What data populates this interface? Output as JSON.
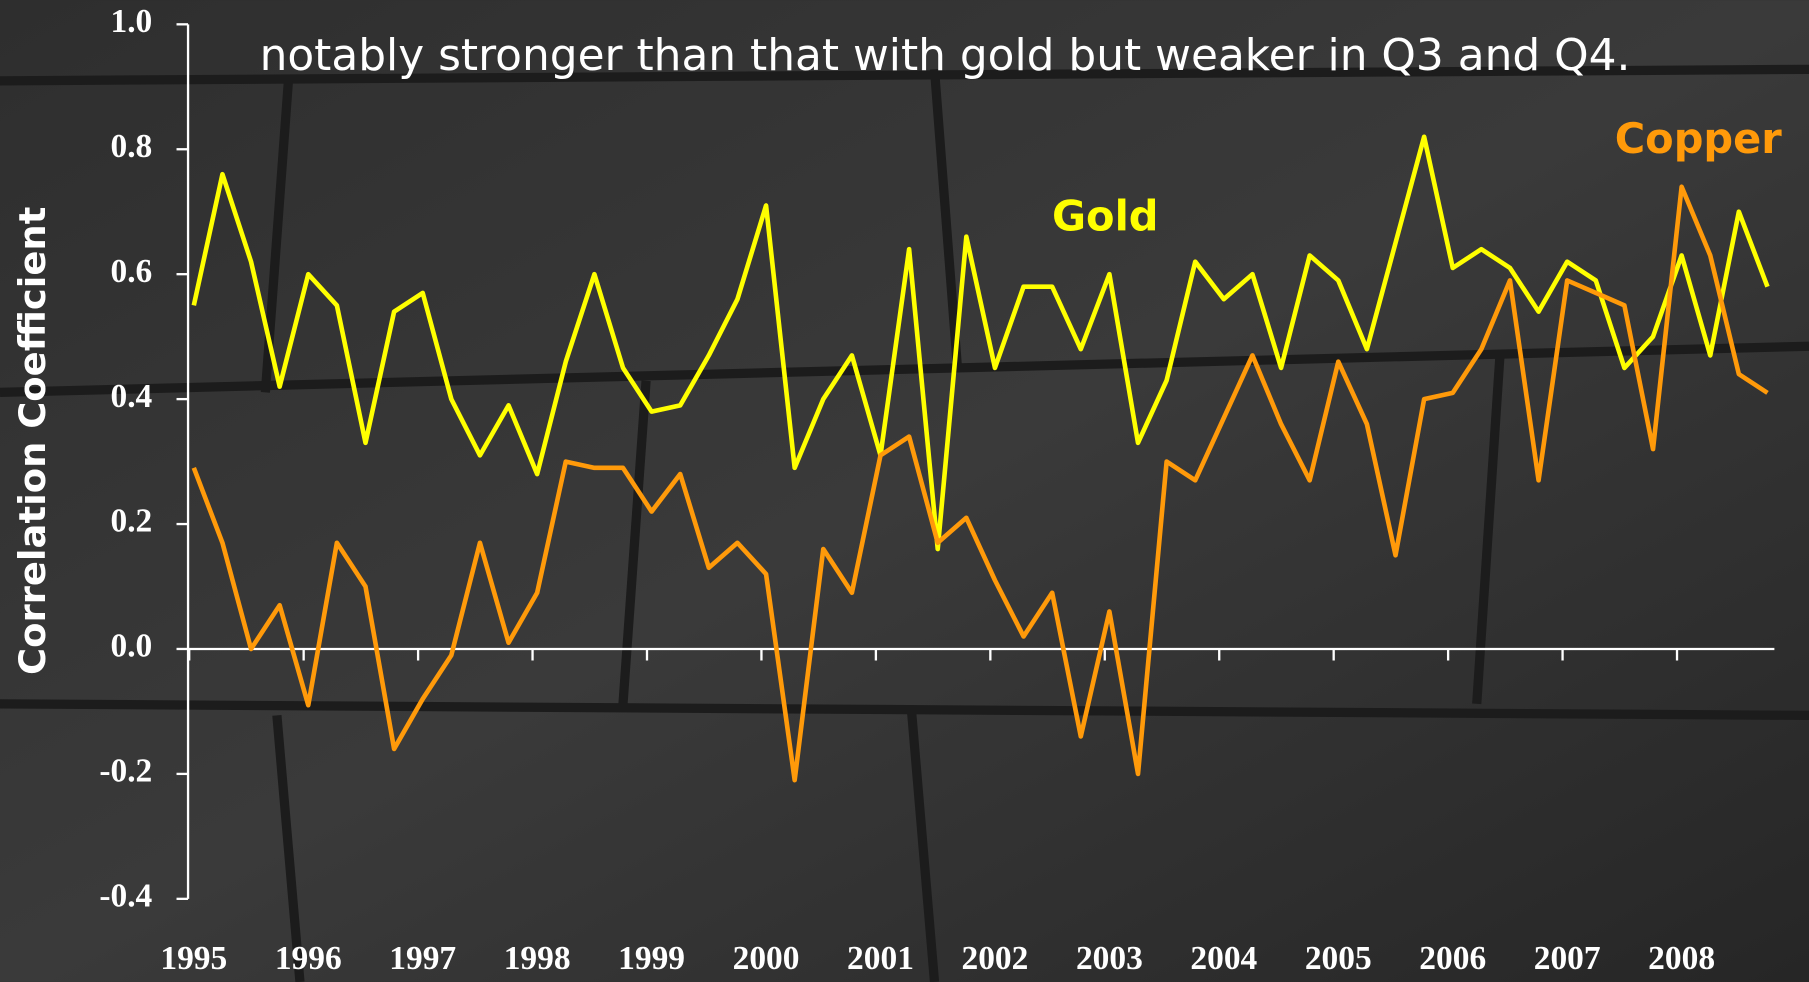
{
  "chart_data": {
    "type": "line",
    "subtitle": "notably stronger than that with gold but weaker in Q3 and Q4.",
    "y_label": "Correlation Coefficient",
    "categories": [
      "1995",
      null,
      null,
      null,
      "1996",
      null,
      null,
      null,
      "1997",
      null,
      null,
      null,
      "1998",
      null,
      null,
      null,
      "1999",
      null,
      null,
      null,
      "2000",
      null,
      null,
      null,
      "2001",
      null,
      null,
      null,
      "2002",
      null,
      null,
      null,
      "2003",
      null,
      null,
      null,
      "2004",
      null,
      null,
      null,
      "2005",
      null,
      null,
      null,
      "2006",
      null,
      null,
      null,
      "2007",
      null,
      null,
      null,
      "2008",
      null,
      null,
      null
    ],
    "series": [
      {
        "name": "Gold",
        "color": "#ffff00",
        "values": [
          0.55,
          0.76,
          0.62,
          0.42,
          0.6,
          0.55,
          0.33,
          0.54,
          0.57,
          0.4,
          0.31,
          0.39,
          0.28,
          0.46,
          0.6,
          0.45,
          0.38,
          0.39,
          0.47,
          0.56,
          0.71,
          0.29,
          0.4,
          0.47,
          0.31,
          0.64,
          0.16,
          0.66,
          0.45,
          0.58,
          0.58,
          0.48,
          0.6,
          0.33,
          0.43,
          0.62,
          0.56,
          0.6,
          0.45,
          0.63,
          0.59,
          0.48,
          0.65,
          0.82,
          0.61,
          0.64,
          0.61,
          0.54,
          0.62,
          0.59,
          0.45,
          0.5,
          0.63,
          0.47,
          0.7,
          0.58
        ]
      },
      {
        "name": "Copper",
        "color": "#ff9a0a",
        "values": [
          0.29,
          0.17,
          0.0,
          0.07,
          -0.09,
          0.17,
          0.1,
          -0.16,
          -0.08,
          -0.01,
          0.17,
          0.01,
          0.09,
          0.3,
          0.29,
          0.29,
          0.22,
          0.28,
          0.13,
          0.17,
          0.12,
          -0.21,
          0.16,
          0.09,
          0.31,
          0.34,
          0.17,
          0.21,
          0.11,
          0.02,
          0.09,
          -0.14,
          0.06,
          -0.2,
          0.3,
          0.27,
          0.37,
          0.47,
          0.36,
          0.27,
          0.46,
          0.36,
          0.15,
          0.4,
          0.41,
          0.48,
          0.59,
          0.27,
          0.59,
          0.57,
          0.55,
          0.32,
          0.74,
          0.63,
          0.44,
          0.41
        ]
      }
    ],
    "ylim": [
      -0.4,
      1.0
    ],
    "yticks": [
      {
        "value": -0.4,
        "label": "-0.4"
      },
      {
        "value": -0.2,
        "label": "-0.2"
      },
      {
        "value": 0,
        "label": "0.0"
      },
      0.2,
      0.4,
      0.6,
      0.8,
      {
        "value": 1,
        "label": "1.0"
      }
    ]
  }
}
